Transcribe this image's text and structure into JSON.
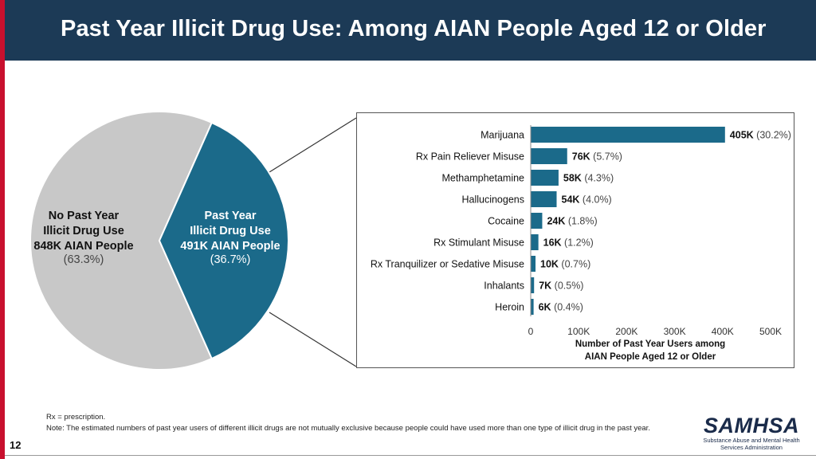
{
  "header": {
    "title": "Past Year Illicit Drug Use: Among AIAN People Aged 12 or Older"
  },
  "footer": {
    "rx_note": "Rx = prescription.",
    "note": "Note: The estimated numbers of past year users of different illicit drugs are not mutually exclusive because people could have used more than one type of illicit drug in the past year.",
    "page_number": "12",
    "logo_text": "SAMHSA",
    "logo_subtitle_1": "Substance Abuse and Mental Health",
    "logo_subtitle_2": "Services Administration"
  },
  "colors": {
    "header_bg": "#1c3a56",
    "accent_red": "#c8102e",
    "teal": "#1b6a8a",
    "gray": "#c8c8c8"
  },
  "chart_data": [
    {
      "type": "pie",
      "slices": [
        {
          "lines": [
            "No Past Year",
            "Illicit Drug Use",
            "848K AIAN People"
          ],
          "pct_label": "(63.3%)",
          "value": 63.3,
          "color": "#c8c8c8"
        },
        {
          "lines": [
            "Past Year",
            "Illicit Drug Use",
            "491K AIAN People"
          ],
          "pct_label": "(36.7%)",
          "value": 36.7,
          "color": "#1b6a8a"
        }
      ]
    },
    {
      "type": "bar",
      "orientation": "horizontal",
      "categories": [
        "Marijuana",
        "Rx Pain Reliever Misuse",
        "Methamphetamine",
        "Hallucinogens",
        "Cocaine",
        "Rx Stimulant Misuse",
        "Rx Tranquilizer or Sedative Misuse",
        "Inhalants",
        "Heroin"
      ],
      "values": [
        405,
        76,
        58,
        54,
        24,
        16,
        10,
        7,
        6
      ],
      "value_labels": [
        "405K",
        "76K",
        "58K",
        "54K",
        "24K",
        "16K",
        "10K",
        "7K",
        "6K"
      ],
      "pct_labels": [
        "(30.2%)",
        "(5.7%)",
        "(4.3%)",
        "(4.0%)",
        "(1.8%)",
        "(1.2%)",
        "(0.7%)",
        "(0.5%)",
        "(0.4%)"
      ],
      "xlim": [
        0,
        500
      ],
      "xticks": [
        0,
        100,
        200,
        300,
        400,
        500
      ],
      "xtick_labels": [
        "0",
        "100K",
        "200K",
        "300K",
        "400K",
        "500K"
      ],
      "xlabel_lines": [
        "Number of Past Year Users among",
        "AIAN People Aged 12 or Older"
      ],
      "color": "#1b6a8a"
    }
  ]
}
